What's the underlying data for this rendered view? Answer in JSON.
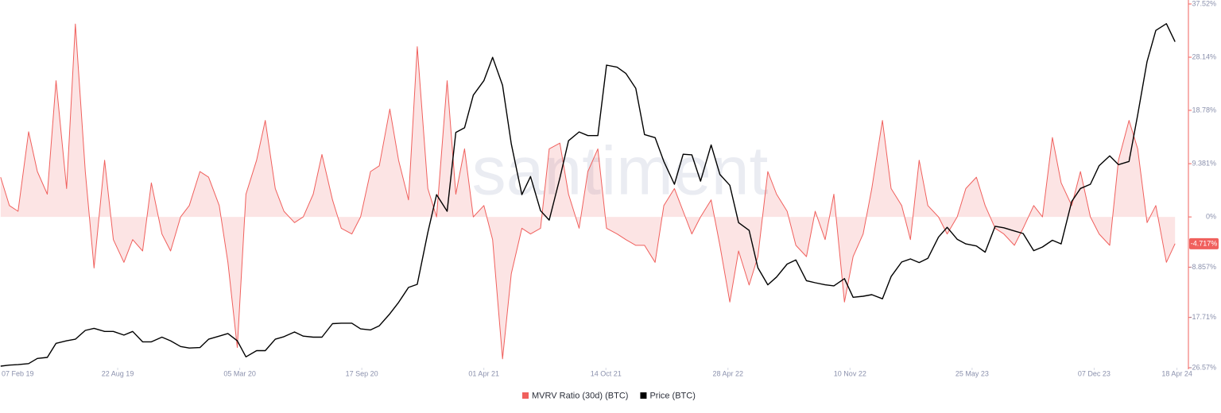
{
  "chart_data": {
    "type": "line",
    "watermark": "santiment",
    "x": [
      "2019-02-15",
      "2019-03-01",
      "2019-03-15",
      "2019-04-01",
      "2019-04-15",
      "2019-05-01",
      "2019-05-15",
      "2019-06-01",
      "2019-06-15",
      "2019-07-01",
      "2019-07-15",
      "2019-08-01",
      "2019-08-15",
      "2019-09-01",
      "2019-09-15",
      "2019-10-01",
      "2019-10-15",
      "2019-11-01",
      "2019-11-15",
      "2019-12-01",
      "2019-12-15",
      "2020-01-01",
      "2020-01-15",
      "2020-02-01",
      "2020-02-15",
      "2020-03-01",
      "2020-03-15",
      "2020-04-01",
      "2020-04-15",
      "2020-05-01",
      "2020-05-15",
      "2020-06-01",
      "2020-06-15",
      "2020-07-01",
      "2020-07-15",
      "2020-08-01",
      "2020-08-15",
      "2020-09-01",
      "2020-09-15",
      "2020-10-01",
      "2020-10-15",
      "2020-11-01",
      "2020-11-15",
      "2020-12-01",
      "2020-12-15",
      "2021-01-01",
      "2021-01-15",
      "2021-02-01",
      "2021-02-15",
      "2021-03-01",
      "2021-03-15",
      "2021-04-01",
      "2021-04-15",
      "2021-05-01",
      "2021-05-15",
      "2021-06-01",
      "2021-06-15",
      "2021-07-01",
      "2021-07-15",
      "2021-08-01",
      "2021-08-15",
      "2021-09-01",
      "2021-09-15",
      "2021-10-01",
      "2021-10-15",
      "2021-11-01",
      "2021-11-15",
      "2021-12-01",
      "2021-12-15",
      "2022-01-01",
      "2022-01-15",
      "2022-02-01",
      "2022-02-15",
      "2022-03-01",
      "2022-03-15",
      "2022-04-01",
      "2022-04-15",
      "2022-05-01",
      "2022-05-15",
      "2022-06-01",
      "2022-06-15",
      "2022-07-01",
      "2022-07-15",
      "2022-08-01",
      "2022-08-15",
      "2022-09-01",
      "2022-09-15",
      "2022-10-01",
      "2022-10-15",
      "2022-11-01",
      "2022-11-15",
      "2022-12-01",
      "2022-12-15",
      "2023-01-01",
      "2023-01-15",
      "2023-02-01",
      "2023-02-15",
      "2023-03-01",
      "2023-03-15",
      "2023-04-01",
      "2023-04-15",
      "2023-05-01",
      "2023-05-15",
      "2023-06-01",
      "2023-06-15",
      "2023-07-01",
      "2023-07-15",
      "2023-08-01",
      "2023-08-15",
      "2023-09-01",
      "2023-09-15",
      "2023-10-01",
      "2023-10-15",
      "2023-11-01",
      "2023-11-15",
      "2023-12-01",
      "2023-12-15",
      "2024-01-01",
      "2024-01-15",
      "2024-02-01",
      "2024-02-15",
      "2024-03-01",
      "2024-03-15",
      "2024-04-01",
      "2024-04-15"
    ],
    "xlim": [
      "2019-02-14",
      "2024-04-30"
    ],
    "xticks": [
      {
        "value": "2019-02-07",
        "label": "07 Feb 19"
      },
      {
        "value": "2019-08-22",
        "label": "22 Aug 19"
      },
      {
        "value": "2020-03-05",
        "label": "05 Mar 20"
      },
      {
        "value": "2020-09-17",
        "label": "17 Sep 20"
      },
      {
        "value": "2021-04-01",
        "label": "01 Apr 21"
      },
      {
        "value": "2021-10-14",
        "label": "14 Oct 21"
      },
      {
        "value": "2022-04-28",
        "label": "28 Apr 22"
      },
      {
        "value": "2022-11-10",
        "label": "10 Nov 22"
      },
      {
        "value": "2023-05-25",
        "label": "25 May 23"
      },
      {
        "value": "2023-12-07",
        "label": "07 Dec 23"
      },
      {
        "value": "2024-04-18",
        "label": "18 Apr 24"
      }
    ],
    "ylim": [
      -26.57,
      37.52
    ],
    "yticks": [
      {
        "value": 37.52,
        "label": "37.52%"
      },
      {
        "value": 28.14,
        "label": "28.14%"
      },
      {
        "value": 18.78,
        "label": "18.78%"
      },
      {
        "value": 9.381,
        "label": "9.381%"
      },
      {
        "value": 0,
        "label": "0%"
      },
      {
        "value": -8.857,
        "label": "-8.857%"
      },
      {
        "value": -17.71,
        "label": "-17.71%"
      },
      {
        "value": -26.57,
        "label": "-26.57%"
      }
    ],
    "y2lim": [
      3300,
      73500
    ],
    "series": [
      {
        "name": "MVRV Ratio (30d) (BTC)",
        "color": "#f0605d",
        "area_color": "rgba(240,96,93,0.17)",
        "last_label": "-4.717%",
        "values": [
          7,
          2,
          1,
          15,
          8,
          4,
          24,
          5,
          34,
          8,
          -9,
          10,
          -4,
          -8,
          -4,
          -6,
          6,
          -3,
          -6,
          0,
          2,
          8,
          7,
          2,
          -8,
          -23,
          4,
          10,
          17,
          5,
          1,
          -1,
          0,
          4,
          11,
          3,
          -2,
          -3,
          0,
          8,
          9,
          19,
          10,
          3,
          30,
          5,
          0,
          24,
          4,
          12,
          0,
          2,
          -4,
          -25,
          -10,
          -2,
          -3,
          -2,
          12,
          13,
          4,
          -2,
          8,
          12,
          -2,
          -3,
          -4,
          -5,
          -5,
          -8,
          2,
          5,
          1,
          -3,
          0,
          3,
          -5,
          -15,
          -6,
          -12,
          -7,
          8,
          4,
          1,
          -5,
          -7,
          1,
          -4,
          4,
          -15,
          -7,
          -3,
          5,
          17,
          5,
          2,
          -4,
          10,
          2,
          0,
          -3,
          0,
          5,
          7,
          2,
          -2,
          -3,
          -5,
          -2,
          2,
          0,
          14,
          6,
          2,
          8,
          0,
          -3,
          -5,
          10,
          17,
          12,
          -1,
          2,
          -8,
          -4.717
        ]
      },
      {
        "name": "Price (BTC)",
        "color": "#000000",
        "axis": "y2",
        "values": [
          3600,
          3800,
          3900,
          4100,
          5100,
          5300,
          8000,
          8500,
          8800,
          10500,
          10900,
          10300,
          10300,
          9600,
          10300,
          8300,
          8300,
          9200,
          8500,
          7400,
          7100,
          7200,
          8800,
          9400,
          9900,
          8500,
          5400,
          6600,
          6600,
          8800,
          9300,
          10200,
          9400,
          9200,
          9200,
          11800,
          11900,
          11900,
          10800,
          10600,
          11400,
          13700,
          15900,
          18800,
          19400,
          29400,
          36700,
          33500,
          48700,
          49600,
          55900,
          58700,
          63200,
          57800,
          46500,
          36700,
          40200,
          33600,
          31800,
          39900,
          47100,
          48800,
          48100,
          48100,
          61700,
          61300,
          60100,
          57200,
          48300,
          47700,
          43100,
          38700,
          44500,
          44400,
          39300,
          46300,
          40600,
          38500,
          31300,
          29800,
          22600,
          19300,
          20800,
          23300,
          24100,
          20100,
          19700,
          19300,
          19100,
          20500,
          16900,
          17100,
          17400,
          16600,
          20900,
          23700,
          24300,
          23600,
          24400,
          28500,
          30400,
          28100,
          27200,
          26800,
          25600,
          30600,
          30300,
          29700,
          29200,
          25900,
          26600,
          27900,
          27200,
          35400,
          37900,
          38700,
          42300,
          44200,
          42500,
          43100,
          52100,
          62400,
          68400,
          69700,
          66200
        ]
      }
    ]
  }
}
